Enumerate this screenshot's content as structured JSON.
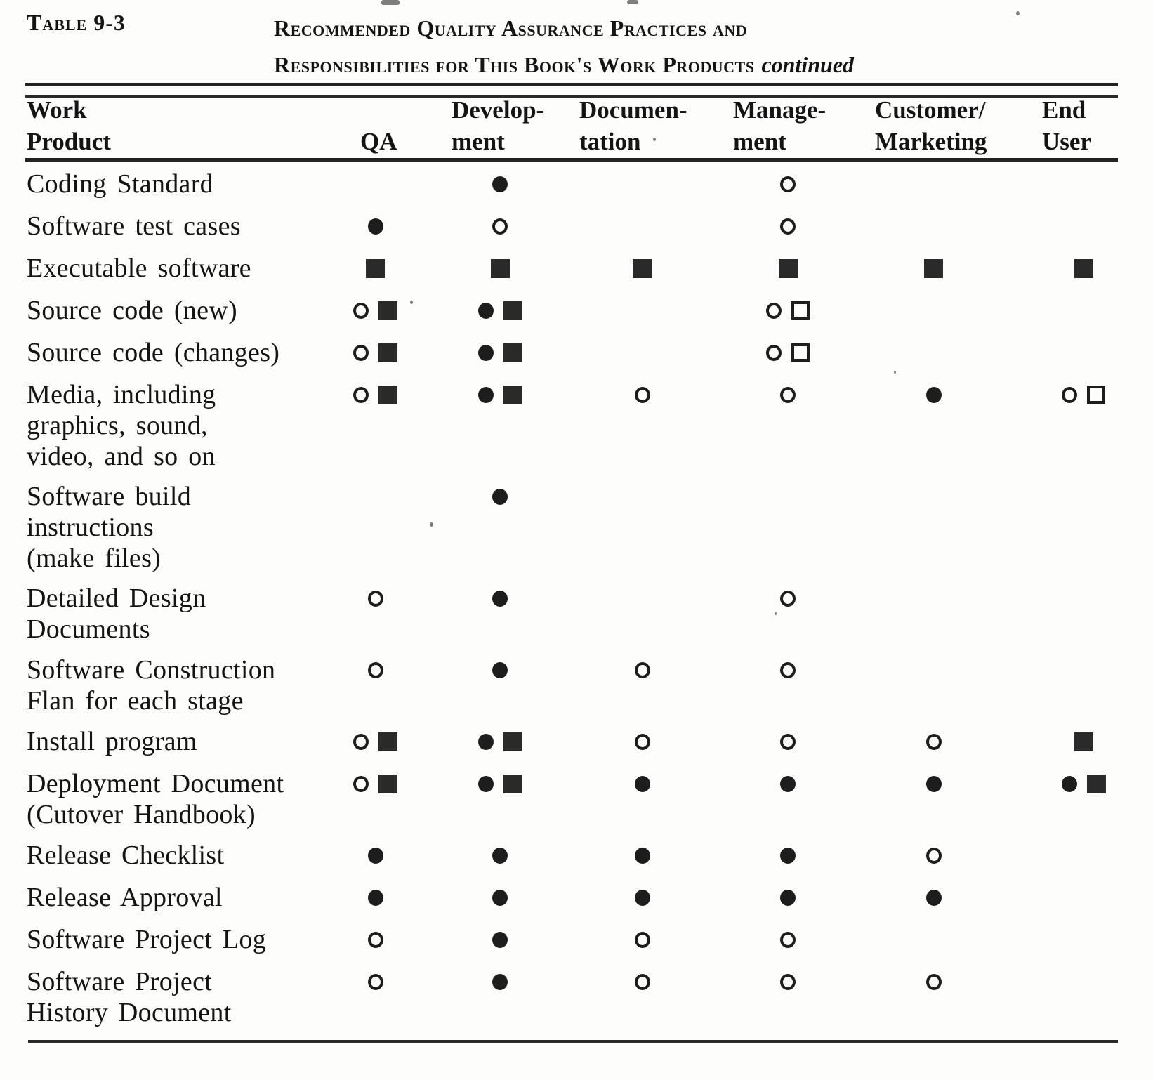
{
  "caption": {
    "label": "Table 9-3",
    "title_line1": "Recommended Quality Assurance Practices and",
    "title_line2": "Responsibilities for This Book's Work Products",
    "continued": "continued"
  },
  "columns": [
    {
      "id": "product",
      "line1": "Work",
      "line2": "Product"
    },
    {
      "id": "qa",
      "line1": "",
      "line2": "QA"
    },
    {
      "id": "development",
      "line1": "Develop-",
      "line2": "ment"
    },
    {
      "id": "documentation",
      "line1": "Documen-",
      "line2": "tation"
    },
    {
      "id": "management",
      "line1": "Manage-",
      "line2": "ment"
    },
    {
      "id": "customer_marketing",
      "line1": "Customer/",
      "line2": "Marketing"
    },
    {
      "id": "end_user",
      "line1": "End",
      "line2": "User"
    }
  ],
  "symbols": {
    "filled-circle": "●",
    "open-circle": "○",
    "filled-square": "■",
    "open-square": "□"
  },
  "colors": {
    "ink": "#1d1d1d",
    "paper": "#fdfdfc"
  },
  "rows": [
    {
      "label_lines": [
        "Coding Standard"
      ],
      "cells": {
        "development": [
          "filled-circle"
        ],
        "management": [
          "open-circle"
        ]
      }
    },
    {
      "label_lines": [
        "Software test cases"
      ],
      "cells": {
        "qa": [
          "filled-circle"
        ],
        "development": [
          "open-circle"
        ],
        "management": [
          "open-circle"
        ]
      }
    },
    {
      "label_lines": [
        "Executable software"
      ],
      "cells": {
        "qa": [
          "filled-square"
        ],
        "development": [
          "filled-square"
        ],
        "documentation": [
          "filled-square"
        ],
        "management": [
          "filled-square"
        ],
        "customer_marketing": [
          "filled-square"
        ],
        "end_user": [
          "filled-square"
        ]
      }
    },
    {
      "label_lines": [
        "Source code (new)"
      ],
      "cells": {
        "qa": [
          "open-circle",
          "filled-square"
        ],
        "development": [
          "filled-circle",
          "filled-square"
        ],
        "management": [
          "open-circle",
          "open-square"
        ]
      }
    },
    {
      "label_lines": [
        "Source code (changes)"
      ],
      "cells": {
        "qa": [
          "open-circle",
          "filled-square"
        ],
        "development": [
          "filled-circle",
          "filled-square"
        ],
        "management": [
          "open-circle",
          "open-square"
        ]
      }
    },
    {
      "label_lines": [
        "Media, including",
        "graphics, sound,",
        "video, and so on"
      ],
      "cells": {
        "qa": [
          "open-circle",
          "filled-square"
        ],
        "development": [
          "filled-circle",
          "filled-square"
        ],
        "documentation": [
          "open-circle"
        ],
        "management": [
          "open-circle"
        ],
        "customer_marketing": [
          "filled-circle"
        ],
        "end_user": [
          "open-circle",
          "open-square"
        ]
      }
    },
    {
      "label_lines": [
        "Software  build",
        "instructions",
        "(make files)"
      ],
      "cells": {
        "development": [
          "filled-circle"
        ]
      }
    },
    {
      "label_lines": [
        "Detailed Design",
        "Documents"
      ],
      "cells": {
        "qa": [
          "open-circle"
        ],
        "development": [
          "filled-circle"
        ],
        "management": [
          "open-circle"
        ]
      }
    },
    {
      "label_lines": [
        "Software  Construction",
        "Flan for each stage"
      ],
      "cells": {
        "qa": [
          "open-circle"
        ],
        "development": [
          "filled-circle"
        ],
        "documentation": [
          "open-circle"
        ],
        "management": [
          "open-circle"
        ]
      }
    },
    {
      "label_lines": [
        "Install program"
      ],
      "cells": {
        "qa": [
          "open-circle",
          "filled-square"
        ],
        "development": [
          "filled-circle",
          "filled-square"
        ],
        "documentation": [
          "open-circle"
        ],
        "management": [
          "open-circle"
        ],
        "customer_marketing": [
          "open-circle"
        ],
        "end_user": [
          "filled-square"
        ]
      }
    },
    {
      "label_lines": [
        "Deployment Document",
        "(Cutover  Handbook)"
      ],
      "cells": {
        "qa": [
          "open-circle",
          "filled-square"
        ],
        "development": [
          "filled-circle",
          "filled-square"
        ],
        "documentation": [
          "filled-circle"
        ],
        "management": [
          "filled-circle"
        ],
        "customer_marketing": [
          "filled-circle"
        ],
        "end_user": [
          "filled-circle",
          "filled-square"
        ]
      }
    },
    {
      "label_lines": [
        "Release  Checklist"
      ],
      "cells": {
        "qa": [
          "filled-circle"
        ],
        "development": [
          "filled-circle"
        ],
        "documentation": [
          "filled-circle"
        ],
        "management": [
          "filled-circle"
        ],
        "customer_marketing": [
          "open-circle"
        ]
      }
    },
    {
      "label_lines": [
        "Release  Approval"
      ],
      "cells": {
        "qa": [
          "filled-circle"
        ],
        "development": [
          "filled-circle"
        ],
        "documentation": [
          "filled-circle"
        ],
        "management": [
          "filled-circle"
        ],
        "customer_marketing": [
          "filled-circle"
        ]
      }
    },
    {
      "label_lines": [
        "Software Project Log"
      ],
      "cells": {
        "qa": [
          "open-circle"
        ],
        "development": [
          "filled-circle"
        ],
        "documentation": [
          "open-circle"
        ],
        "management": [
          "open-circle"
        ]
      }
    },
    {
      "label_lines": [
        "Software Project",
        "History Document"
      ],
      "cells": {
        "qa": [
          "open-circle"
        ],
        "development": [
          "filled-circle"
        ],
        "documentation": [
          "open-circle"
        ],
        "management": [
          "open-circle"
        ],
        "customer_marketing": [
          "open-circle"
        ]
      }
    }
  ]
}
